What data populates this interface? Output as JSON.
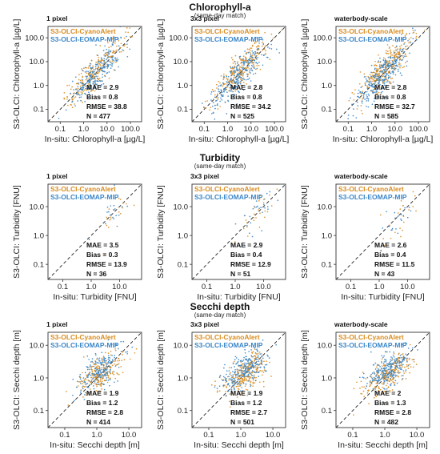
{
  "colors": {
    "cyanoalert": "#d98c1f",
    "eomap": "#3a86c8"
  },
  "chart_data": [
    {
      "type": "scatter",
      "section": "Chlorophyll-a",
      "subtitle": "(same-day match)",
      "title": "1 pixel",
      "xlabel": "In-situ: Chlorophyll-a [µg/L]",
      "ylabel": "S3-OLCI: Chlorophyll-a [µg/L]",
      "scale": "log",
      "xlim": [
        0.03,
        300
      ],
      "ylim": [
        0.03,
        300
      ],
      "xticks": [
        "0.1",
        "1.0",
        "10.0",
        "100.0"
      ],
      "yticks": [
        "0.1",
        "1.0",
        "10.0",
        "100.0"
      ],
      "legend": [
        "S3-OLCI-CyanoAlert",
        "S3-OLCI-EOMAP-MIP"
      ],
      "stats": [
        "MAE = 2.9",
        "Bias = 0.8",
        "RMSE = 38.8",
        "N = 477"
      ],
      "series": [
        {
          "name": "S3-OLCI-CyanoAlert",
          "approx_points": 240
        },
        {
          "name": "S3-OLCI-EOMAP-MIP",
          "approx_points": 237
        }
      ]
    },
    {
      "type": "scatter",
      "title": "3x3 pixel",
      "xlabel": "In-situ: Chlorophyll-a [µg/L]",
      "ylabel": "S3-OLCI: Chlorophyll-a [µg/L]",
      "scale": "log",
      "xlim": [
        0.03,
        300
      ],
      "ylim": [
        0.03,
        300
      ],
      "xticks": [
        "0.1",
        "1.0",
        "10.0",
        "100.0"
      ],
      "yticks": [
        "0.1",
        "1.0",
        "10.0",
        "100.0"
      ],
      "legend": [
        "S3-OLCI-CyanoAlert",
        "S3-OLCI-EOMAP-MIP"
      ],
      "stats": [
        "MAE = 2.8",
        "Bias = 0.8",
        "RMSE = 34.2",
        "N = 525"
      ],
      "series": [
        {
          "name": "S3-OLCI-CyanoAlert",
          "approx_points": 270
        },
        {
          "name": "S3-OLCI-EOMAP-MIP",
          "approx_points": 255
        }
      ]
    },
    {
      "type": "scatter",
      "title": "waterbody-scale",
      "xlabel": "In-situ: Chlorophyll-a [µg/L]",
      "ylabel": "S3-OLCI: Chlorophyll-a [µg/L]",
      "scale": "log",
      "xlim": [
        0.03,
        300
      ],
      "ylim": [
        0.03,
        300
      ],
      "xticks": [
        "0.1",
        "1.0",
        "10.0",
        "100.0"
      ],
      "yticks": [
        "0.1",
        "1.0",
        "10.0",
        "100.0"
      ],
      "legend": [
        "S3-OLCI-CyanoAlert",
        "S3-OLCI-EOMAP-MIP"
      ],
      "stats": [
        "MAE = 2.8",
        "Bias = 0.8",
        "RMSE = 32.7",
        "N = 585"
      ],
      "series": [
        {
          "name": "S3-OLCI-CyanoAlert",
          "approx_points": 300
        },
        {
          "name": "S3-OLCI-EOMAP-MIP",
          "approx_points": 285
        }
      ]
    },
    {
      "type": "scatter",
      "section": "Turbidity",
      "subtitle": "(same-day match)",
      "title": "1 pixel",
      "xlabel": "In-situ: Turbidity [FNU]",
      "ylabel": "S3-OLCI: Turbidity [FNU]",
      "scale": "log",
      "xlim": [
        0.03,
        60
      ],
      "ylim": [
        0.03,
        60
      ],
      "xticks": [
        "0.1",
        "1.0",
        "10.0"
      ],
      "yticks": [
        "0.1",
        "1.0",
        "10.0"
      ],
      "legend": [
        "S3-OLCI-CyanoAlert",
        "S3-OLCI-EOMAP-MIP"
      ],
      "stats": [
        "MAE = 3.5",
        "Bias = 0.3",
        "RMSE = 13.9",
        "N = 36"
      ],
      "series": [
        {
          "name": "S3-OLCI-CyanoAlert",
          "approx_points": 18
        },
        {
          "name": "S3-OLCI-EOMAP-MIP",
          "approx_points": 18
        }
      ]
    },
    {
      "type": "scatter",
      "title": "3x3 pixel",
      "xlabel": "In-situ: Turbidity [FNU]",
      "ylabel": "S3-OLCI: Turbidity [FNU]",
      "scale": "log",
      "xlim": [
        0.03,
        60
      ],
      "ylim": [
        0.03,
        60
      ],
      "xticks": [
        "0.1",
        "1.0",
        "10.0"
      ],
      "yticks": [
        "0.1",
        "1.0",
        "10.0"
      ],
      "legend": [
        "S3-OLCI-CyanoAlert",
        "S3-OLCI-EOMAP-MIP"
      ],
      "stats": [
        "MAE = 2.9",
        "Bias = 0.4",
        "RMSE = 12.9",
        "N = 51"
      ],
      "series": [
        {
          "name": "S3-OLCI-CyanoAlert",
          "approx_points": 26
        },
        {
          "name": "S3-OLCI-EOMAP-MIP",
          "approx_points": 25
        }
      ]
    },
    {
      "type": "scatter",
      "title": "waterbody-scale",
      "xlabel": "In-situ: Turbidity [FNU]",
      "ylabel": "S3-OLCI: Turbidity [FNU]",
      "scale": "log",
      "xlim": [
        0.03,
        60
      ],
      "ylim": [
        0.03,
        60
      ],
      "xticks": [
        "0.1",
        "1.0",
        "10.0"
      ],
      "yticks": [
        "0.1",
        "1.0",
        "10.0"
      ],
      "legend": [
        "S3-OLCI-CyanoAlert",
        "S3-OLCI-EOMAP-MIP"
      ],
      "stats": [
        "MAE = 2.6",
        "Bias = 0.4",
        "RMSE = 11.5",
        "N = 43"
      ],
      "series": [
        {
          "name": "S3-OLCI-CyanoAlert",
          "approx_points": 22
        },
        {
          "name": "S3-OLCI-EOMAP-MIP",
          "approx_points": 21
        }
      ]
    },
    {
      "type": "scatter",
      "section": "Secchi depth",
      "subtitle": "(same-day match)",
      "title": "1 pixel",
      "xlabel": "In-situ: Secchi depth [m]",
      "ylabel": "S3-OLCI: Secchi depth [m]",
      "scale": "log",
      "xlim": [
        0.03,
        25
      ],
      "ylim": [
        0.03,
        25
      ],
      "xticks": [
        "0.1",
        "1.0",
        "10.0"
      ],
      "yticks": [
        "0.1",
        "1.0",
        "10.0"
      ],
      "legend": [
        "S3-OLCI-CyanoAlert",
        "S3-OLCI-EOMAP-MIP"
      ],
      "stats": [
        "MAE = 1.9",
        "Bias = 1.2",
        "RMSE = 2.8",
        "N = 414"
      ],
      "series": [
        {
          "name": "S3-OLCI-CyanoAlert",
          "approx_points": 210
        },
        {
          "name": "S3-OLCI-EOMAP-MIP",
          "approx_points": 204
        }
      ]
    },
    {
      "type": "scatter",
      "title": "3x3 pixel",
      "xlabel": "In-situ: Secchi depth [m]",
      "ylabel": "S3-OLCI: Secchi depth [m]",
      "scale": "log",
      "xlim": [
        0.03,
        25
      ],
      "ylim": [
        0.03,
        25
      ],
      "xticks": [
        "0.1",
        "1.0",
        "10.0"
      ],
      "yticks": [
        "0.1",
        "1.0",
        "10.0"
      ],
      "legend": [
        "S3-OLCI-CyanoAlert",
        "S3-OLCI-EOMAP-MIP"
      ],
      "stats": [
        "MAE = 1.9",
        "Bias = 1.2",
        "RMSE = 2.7",
        "N = 501"
      ],
      "series": [
        {
          "name": "S3-OLCI-CyanoAlert",
          "approx_points": 255
        },
        {
          "name": "S3-OLCI-EOMAP-MIP",
          "approx_points": 246
        }
      ]
    },
    {
      "type": "scatter",
      "title": "waterbody-scale",
      "xlabel": "In-situ: Secchi depth [m]",
      "ylabel": "S3-OLCI: Secchi depth [m]",
      "scale": "log",
      "xlim": [
        0.03,
        25
      ],
      "ylim": [
        0.03,
        25
      ],
      "xticks": [
        "0.1",
        "1.0",
        "10.0"
      ],
      "yticks": [
        "0.1",
        "1.0",
        "10.0"
      ],
      "legend": [
        "S3-OLCI-CyanoAlert",
        "S3-OLCI-EOMAP-MIP"
      ],
      "stats": [
        "MAE = 2",
        "Bias = 1.3",
        "RMSE = 2.8",
        "N = 482"
      ],
      "series": [
        {
          "name": "S3-OLCI-CyanoAlert",
          "approx_points": 245
        },
        {
          "name": "S3-OLCI-EOMAP-MIP",
          "approx_points": 237
        }
      ]
    }
  ]
}
